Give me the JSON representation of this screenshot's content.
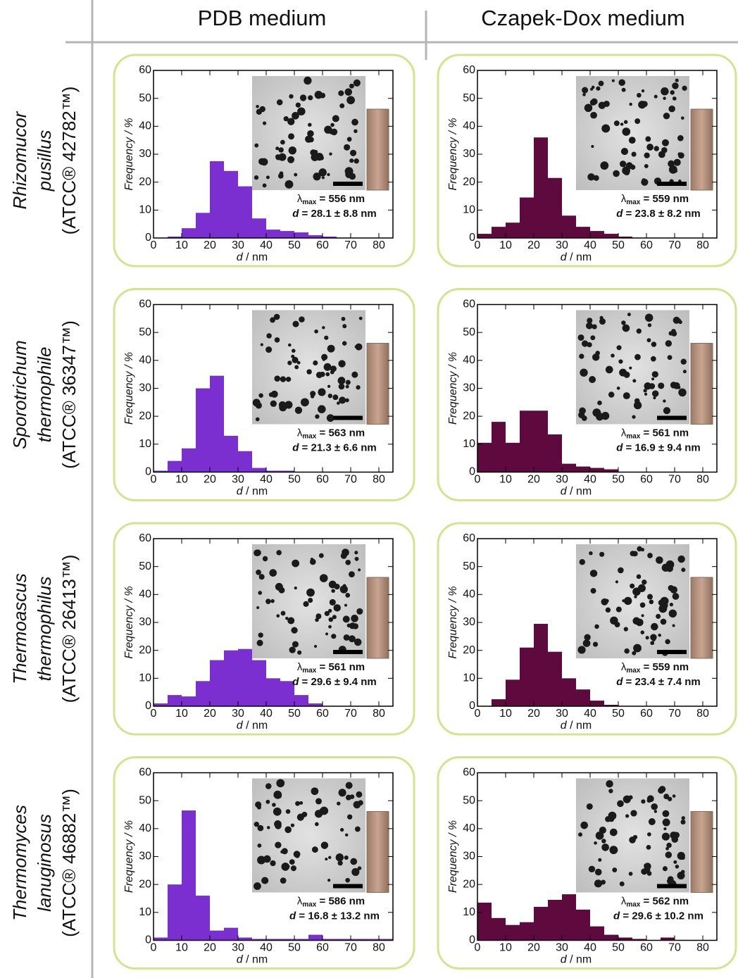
{
  "column_headers": [
    "PDB medium",
    "Czapek-Dox medium"
  ],
  "row_labels": [
    {
      "genus": "Rhizomucor",
      "species": "pusillus",
      "strain": "(ATCC® 42782™)"
    },
    {
      "genus": "Sporotrichum",
      "species": "thermophile",
      "strain": "(ATCC® 36347™)"
    },
    {
      "genus": "Thermoascus",
      "species": "thermophilus",
      "strain": "(ATCC® 26413™)"
    },
    {
      "genus": "Thermomyces",
      "species": "lanuginosus",
      "strain": "(ATCC® 46882™)"
    }
  ],
  "chart_data": [
    {
      "type": "histogram",
      "color": "#7b2fd1",
      "bins": [
        0,
        5,
        10,
        15,
        20,
        25,
        30,
        35,
        40,
        45,
        50,
        55,
        60,
        65,
        70,
        75,
        80,
        85
      ],
      "values": [
        0,
        0.5,
        3.5,
        9,
        27.5,
        24,
        18.5,
        7,
        3,
        2.5,
        2,
        1,
        0.5,
        0,
        0,
        0,
        0
      ],
      "xlim": [
        0,
        85
      ],
      "ylim": [
        0,
        60
      ],
      "xticks": [
        0,
        10,
        20,
        30,
        40,
        50,
        60,
        70,
        80
      ],
      "yticks": [
        0,
        10,
        20,
        30,
        40,
        50,
        60
      ],
      "xlabel": {
        "symbol": "d",
        "unit": " / nm"
      },
      "ylabel": "Frequency / %",
      "annotations": {
        "lambda": "λ",
        "lambda_sub": "max",
        "lambda_text": " = 556 nm",
        "d": "d",
        "d_text": " = 28.1 ± 8.8 nm"
      }
    },
    {
      "type": "histogram",
      "color": "#5e0a3e",
      "bins": [
        0,
        5,
        10,
        15,
        20,
        25,
        30,
        35,
        40,
        45,
        50,
        55,
        60,
        65,
        70,
        75,
        80,
        85
      ],
      "values": [
        1.5,
        4,
        5.5,
        14.5,
        36,
        21.5,
        8,
        4,
        2.5,
        1.5,
        0.5,
        0,
        0,
        0,
        0,
        0,
        0
      ],
      "xlim": [
        0,
        85
      ],
      "ylim": [
        0,
        60
      ],
      "xticks": [
        0,
        10,
        20,
        30,
        40,
        50,
        60,
        70,
        80
      ],
      "yticks": [
        0,
        10,
        20,
        30,
        40,
        50,
        60
      ],
      "xlabel": {
        "symbol": "d",
        "unit": " / nm"
      },
      "ylabel": "Frequency / %",
      "annotations": {
        "lambda": "λ",
        "lambda_sub": "max",
        "lambda_text": " = 559 nm",
        "d": "d",
        "d_text": " = 23.8 ± 8.2 nm"
      }
    },
    {
      "type": "histogram",
      "color": "#7b2fd1",
      "bins": [
        0,
        5,
        10,
        15,
        20,
        25,
        30,
        35,
        40,
        45,
        50,
        55,
        60,
        65,
        70,
        75,
        80,
        85
      ],
      "values": [
        0.5,
        4,
        8.5,
        30,
        34.5,
        13,
        7.5,
        1.5,
        0.5,
        0.5,
        0,
        0,
        0,
        0,
        0,
        0,
        0
      ],
      "xlim": [
        0,
        85
      ],
      "ylim": [
        0,
        60
      ],
      "xticks": [
        0,
        10,
        20,
        30,
        40,
        50,
        60,
        70,
        80
      ],
      "yticks": [
        0,
        10,
        20,
        30,
        40,
        50,
        60
      ],
      "xlabel": {
        "symbol": "d",
        "unit": " / nm"
      },
      "ylabel": "Frequency / %",
      "annotations": {
        "lambda": "λ",
        "lambda_sub": "max",
        "lambda_text": " = 563 nm",
        "d": "d",
        "d_text": " = 21.3 ± 6.6 nm"
      }
    },
    {
      "type": "histogram",
      "color": "#5e0a3e",
      "bins": [
        0,
        5,
        10,
        15,
        20,
        25,
        30,
        35,
        40,
        45,
        50,
        55,
        60,
        65,
        70,
        75,
        80,
        85
      ],
      "values": [
        10.5,
        18,
        10.5,
        22,
        22,
        13.5,
        3,
        2,
        1.5,
        1,
        0,
        0,
        0,
        0,
        0,
        0,
        0
      ],
      "xlim": [
        0,
        85
      ],
      "ylim": [
        0,
        60
      ],
      "xticks": [
        0,
        10,
        20,
        30,
        40,
        50,
        60,
        70,
        80
      ],
      "yticks": [
        0,
        10,
        20,
        30,
        40,
        50,
        60
      ],
      "xlabel": {
        "symbol": "d",
        "unit": " / nm"
      },
      "ylabel": "Frequency / %",
      "annotations": {
        "lambda": "λ",
        "lambda_sub": "max",
        "lambda_text": " = 561 nm",
        "d": "d",
        "d_text": " = 16.9 ± 9.4 nm"
      }
    },
    {
      "type": "histogram",
      "color": "#7b2fd1",
      "bins": [
        0,
        5,
        10,
        15,
        20,
        25,
        30,
        35,
        40,
        45,
        50,
        55,
        60,
        65,
        70,
        75,
        80,
        85
      ],
      "values": [
        1,
        4,
        3.5,
        9,
        16.5,
        20,
        20.5,
        16.5,
        10,
        9,
        4,
        1,
        0,
        0,
        0,
        0,
        0
      ],
      "xlim": [
        0,
        85
      ],
      "ylim": [
        0,
        60
      ],
      "xticks": [
        0,
        10,
        20,
        30,
        40,
        50,
        60,
        70,
        80
      ],
      "yticks": [
        0,
        10,
        20,
        30,
        40,
        50,
        60
      ],
      "xlabel": {
        "symbol": "d",
        "unit": " / nm"
      },
      "ylabel": "Frequency / %",
      "annotations": {
        "lambda": "λ",
        "lambda_sub": "max",
        "lambda_text": " = 561 nm",
        "d": "d",
        "d_text": " = 29.6 ± 9.4 nm"
      }
    },
    {
      "type": "histogram",
      "color": "#5e0a3e",
      "bins": [
        0,
        5,
        10,
        15,
        20,
        25,
        30,
        35,
        40,
        45,
        50,
        55,
        60,
        65,
        70,
        75,
        80,
        85
      ],
      "values": [
        0,
        2.5,
        9.5,
        21,
        29.5,
        19.5,
        10,
        6,
        2,
        0.5,
        0,
        0,
        0,
        0,
        0,
        0,
        0
      ],
      "xlim": [
        0,
        85
      ],
      "ylim": [
        0,
        60
      ],
      "xticks": [
        0,
        10,
        20,
        30,
        40,
        50,
        60,
        70,
        80
      ],
      "yticks": [
        0,
        10,
        20,
        30,
        40,
        50,
        60
      ],
      "xlabel": {
        "symbol": "d",
        "unit": " / nm"
      },
      "ylabel": "Frequency / %",
      "annotations": {
        "lambda": "λ",
        "lambda_sub": "max",
        "lambda_text": " = 559 nm",
        "d": "d",
        "d_text": " = 23.4 ± 7.4 nm"
      }
    },
    {
      "type": "histogram",
      "color": "#7b2fd1",
      "bins": [
        0,
        5,
        10,
        15,
        20,
        25,
        30,
        35,
        40,
        45,
        50,
        55,
        60,
        65,
        70,
        75,
        80,
        85
      ],
      "values": [
        1,
        20,
        46.5,
        16,
        3.5,
        4.5,
        1,
        0.5,
        0.5,
        0.5,
        0.5,
        2,
        0.5,
        0.5,
        0.5,
        0.5,
        0.5
      ],
      "xlim": [
        0,
        85
      ],
      "ylim": [
        0,
        60
      ],
      "xticks": [
        0,
        10,
        20,
        30,
        40,
        50,
        60,
        70,
        80
      ],
      "yticks": [
        0,
        10,
        20,
        30,
        40,
        50,
        60
      ],
      "xlabel": {
        "symbol": "d",
        "unit": " / nm"
      },
      "ylabel": "Frequency / %",
      "annotations": {
        "lambda": "λ",
        "lambda_sub": "max",
        "lambda_text": " = 586 nm",
        "d": "d",
        "d_text": " = 16.8 ± 13.2 nm"
      }
    },
    {
      "type": "histogram",
      "color": "#5e0a3e",
      "bins": [
        0,
        5,
        10,
        15,
        20,
        25,
        30,
        35,
        40,
        45,
        50,
        55,
        60,
        65,
        70,
        75,
        80,
        85
      ],
      "values": [
        13.5,
        8,
        5.5,
        6.5,
        12,
        14.5,
        16.5,
        11,
        5,
        2,
        1,
        0.5,
        0,
        1,
        0,
        0,
        0
      ],
      "xlim": [
        0,
        85
      ],
      "ylim": [
        0,
        60
      ],
      "xticks": [
        0,
        10,
        20,
        30,
        40,
        50,
        60,
        70,
        80
      ],
      "yticks": [
        0,
        10,
        20,
        30,
        40,
        50,
        60
      ],
      "xlabel": {
        "symbol": "d",
        "unit": " / nm"
      },
      "ylabel": "Frequency / %",
      "annotations": {
        "lambda": "λ",
        "lambda_sub": "max",
        "lambda_text": " = 562 nm",
        "d": "d",
        "d_text": " = 29.6 ± 10.2 nm"
      }
    }
  ]
}
